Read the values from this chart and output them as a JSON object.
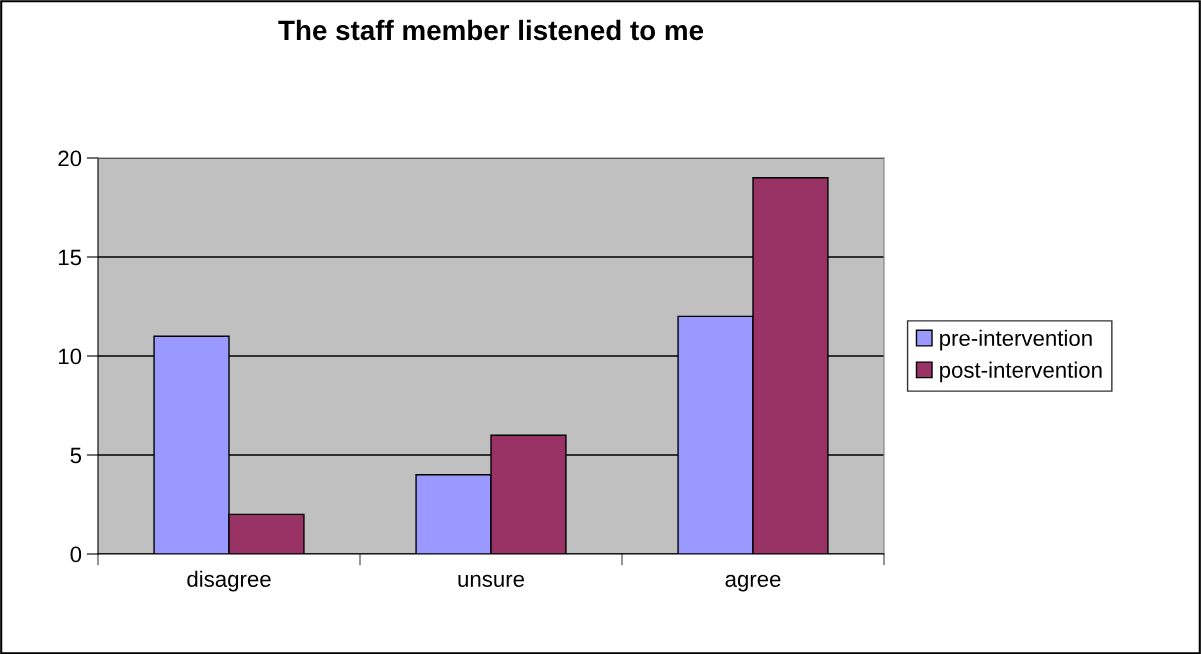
{
  "chart_data": {
    "type": "bar",
    "title": "The staff member listened to me",
    "categories": [
      "disagree",
      "unsure",
      "agree"
    ],
    "series": [
      {
        "name": "pre-intervention",
        "color": "#9999ff",
        "values": [
          11,
          4,
          12
        ]
      },
      {
        "name": "post-intervention",
        "color": "#993366",
        "values": [
          2,
          6,
          19
        ]
      }
    ],
    "ylim": [
      0,
      20
    ],
    "yticks": [
      0,
      5,
      10,
      15,
      20
    ],
    "grid": "y",
    "legend": "right"
  }
}
